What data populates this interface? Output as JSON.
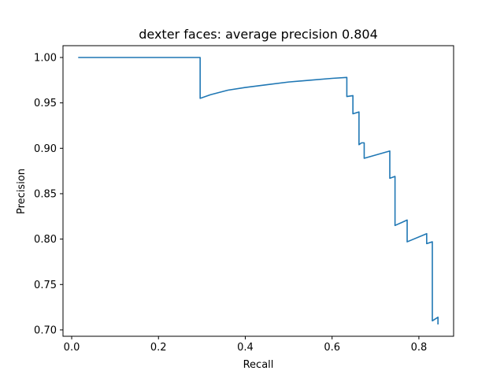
{
  "chart_data": {
    "type": "line",
    "title": "dexter faces: average precision 0.804",
    "xlabel": "Recall",
    "ylabel": "Precision",
    "xlim": [
      -0.02,
      0.88
    ],
    "ylim": [
      0.693,
      1.013
    ],
    "xticks": [
      0.0,
      0.2,
      0.4,
      0.6,
      0.8
    ],
    "xtick_labels": [
      "0.0",
      "0.2",
      "0.4",
      "0.6",
      "0.8"
    ],
    "yticks": [
      0.7,
      0.75,
      0.8,
      0.85,
      0.9,
      0.95,
      1.0
    ],
    "ytick_labels": [
      "0.70",
      "0.75",
      "0.80",
      "0.85",
      "0.90",
      "0.95",
      "1.00"
    ],
    "grid": false,
    "series": [
      {
        "color": "#1f77b4",
        "x": [
          0.015,
          0.296,
          0.296,
          0.32,
          0.36,
          0.4,
          0.45,
          0.5,
          0.55,
          0.6,
          0.634,
          0.634,
          0.648,
          0.648,
          0.662,
          0.662,
          0.668,
          0.674,
          0.674,
          0.733,
          0.733,
          0.745,
          0.745,
          0.773,
          0.773,
          0.818,
          0.818,
          0.831,
          0.831,
          0.844,
          0.844
        ],
        "y": [
          1.0,
          1.0,
          0.955,
          0.959,
          0.964,
          0.967,
          0.97,
          0.973,
          0.975,
          0.977,
          0.978,
          0.957,
          0.958,
          0.938,
          0.94,
          0.904,
          0.906,
          0.906,
          0.889,
          0.897,
          0.867,
          0.869,
          0.815,
          0.821,
          0.797,
          0.806,
          0.795,
          0.797,
          0.71,
          0.714,
          0.706
        ]
      }
    ]
  }
}
